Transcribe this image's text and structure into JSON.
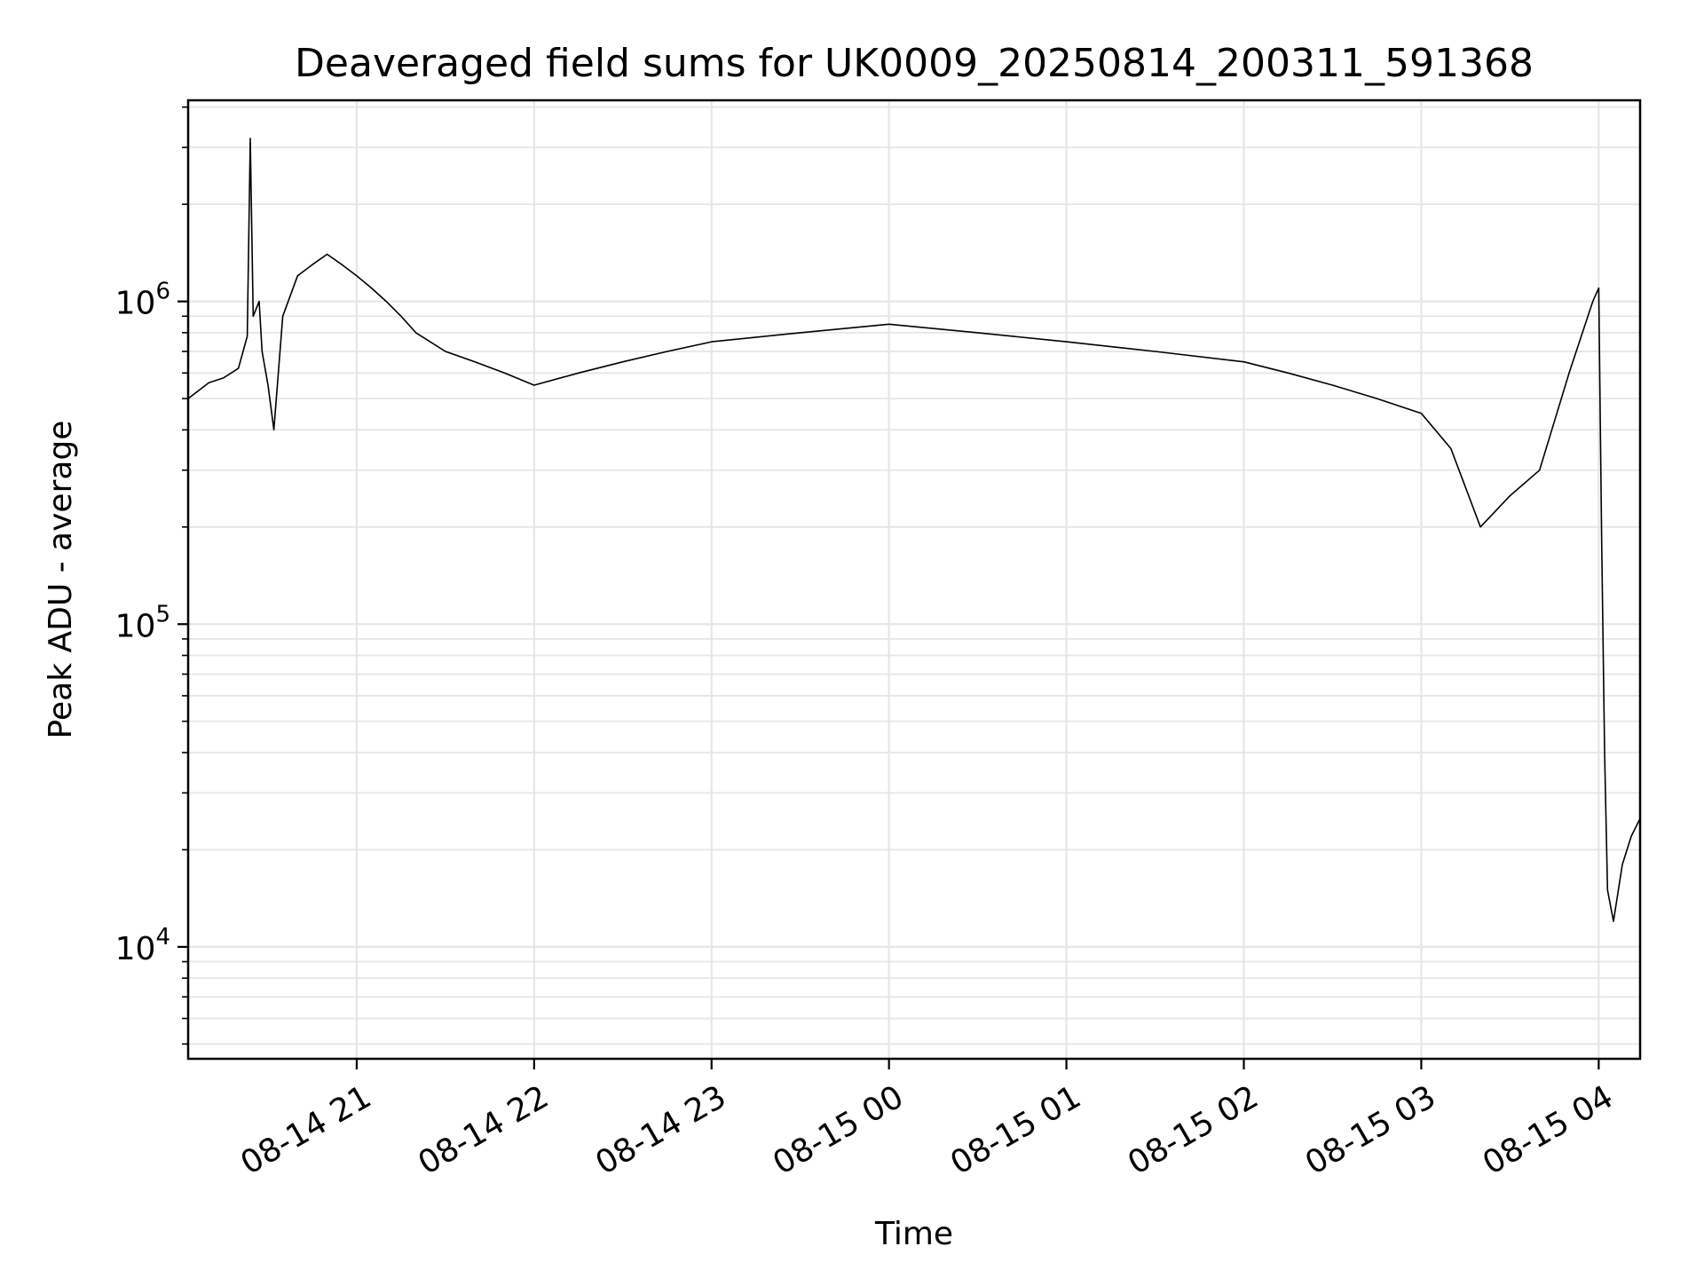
{
  "chart_data": {
    "type": "line",
    "title": "Deaveraged field sums for UK0009_20250814_200311_591368",
    "xlabel": "Time",
    "ylabel": "Peak ADU - average",
    "yscale": "log",
    "grid": true,
    "legend": "none",
    "line_color": "#000000",
    "grid_color": "#e6e6e6",
    "xlim": [
      "2025-08-14 20:03",
      "2025-08-15 04:14"
    ],
    "ylim": [
      4500,
      4200000
    ],
    "x_ticks": [
      {
        "value": "2025-08-14 21:00",
        "label": "08-14 21"
      },
      {
        "value": "2025-08-14 22:00",
        "label": "08-14 22"
      },
      {
        "value": "2025-08-14 23:00",
        "label": "08-14 23"
      },
      {
        "value": "2025-08-15 00:00",
        "label": "08-15 00"
      },
      {
        "value": "2025-08-15 01:00",
        "label": "08-15 01"
      },
      {
        "value": "2025-08-15 02:00",
        "label": "08-15 02"
      },
      {
        "value": "2025-08-15 03:00",
        "label": "08-15 03"
      },
      {
        "value": "2025-08-15 04:00",
        "label": "08-15 04"
      }
    ],
    "y_ticks": [
      {
        "value": 10000,
        "base": "10",
        "exp": "4"
      },
      {
        "value": 100000,
        "base": "10",
        "exp": "5"
      },
      {
        "value": 1000000,
        "base": "10",
        "exp": "6"
      }
    ],
    "series": [
      {
        "name": "",
        "x": [
          "2025-08-14 20:03",
          "2025-08-14 20:10",
          "2025-08-14 20:15",
          "2025-08-14 20:20",
          "2025-08-14 20:23",
          "2025-08-14 20:24",
          "2025-08-14 20:25",
          "2025-08-14 20:27",
          "2025-08-14 20:28",
          "2025-08-14 20:30",
          "2025-08-14 20:32",
          "2025-08-14 20:35",
          "2025-08-14 20:40",
          "2025-08-14 20:45",
          "2025-08-14 20:50",
          "2025-08-14 20:55",
          "2025-08-14 21:00",
          "2025-08-14 21:05",
          "2025-08-14 21:10",
          "2025-08-14 21:15",
          "2025-08-14 21:20",
          "2025-08-14 21:30",
          "2025-08-14 21:40",
          "2025-08-14 21:50",
          "2025-08-14 22:00",
          "2025-08-14 22:15",
          "2025-08-14 22:30",
          "2025-08-14 22:45",
          "2025-08-14 23:00",
          "2025-08-14 23:30",
          "2025-08-15 00:00",
          "2025-08-15 00:30",
          "2025-08-15 01:00",
          "2025-08-15 01:30",
          "2025-08-15 02:00",
          "2025-08-15 02:15",
          "2025-08-15 02:30",
          "2025-08-15 02:45",
          "2025-08-15 03:00",
          "2025-08-15 03:10",
          "2025-08-15 03:20",
          "2025-08-15 03:30",
          "2025-08-15 03:40",
          "2025-08-15 03:50",
          "2025-08-15 03:58",
          "2025-08-15 04:00",
          "2025-08-15 04:01",
          "2025-08-15 04:02",
          "2025-08-15 04:03",
          "2025-08-15 04:05",
          "2025-08-15 04:08",
          "2025-08-15 04:11",
          "2025-08-15 04:14"
        ],
        "y": [
          500000,
          560000,
          580000,
          620000,
          780000,
          3200000,
          900000,
          1000000,
          700000,
          550000,
          400000,
          900000,
          1200000,
          1300000,
          1400000,
          1300000,
          1200000,
          1100000,
          1000000,
          900000,
          800000,
          700000,
          650000,
          600000,
          550000,
          600000,
          650000,
          700000,
          750000,
          800000,
          850000,
          800000,
          750000,
          700000,
          650000,
          600000,
          550000,
          500000,
          450000,
          350000,
          200000,
          250000,
          300000,
          600000,
          1000000,
          1100000,
          180000,
          40000,
          15000,
          12000,
          18000,
          22000,
          25000
        ]
      }
    ]
  }
}
